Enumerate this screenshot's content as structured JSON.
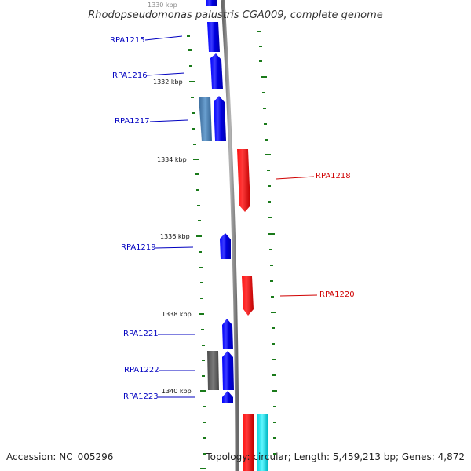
{
  "header": {
    "title": "Rhodopseudomonas palustris CGA009, complete genome"
  },
  "footer": {
    "accession": "Accession: NC_005296",
    "summary": "Topology: circular; Length: 5,459,213 bp; Genes: 4,872"
  },
  "colors": {
    "forward_gene": "#0000ff",
    "reverse_gene": "#ff0000",
    "rna_like": "#00e5ee",
    "pseudo_steel": "#4a7fb0",
    "pseudo_gray": "#666666",
    "backbone": "#8a8a8a",
    "tick": "#1a7a1a",
    "blue_label": "#0000c0",
    "red_label": "#d00000"
  },
  "ruler": {
    "labels": [
      "1330 kbp",
      "1332 kbp",
      "1334 kbp",
      "1336 kbp",
      "1338 kbp",
      "1340 kbp"
    ]
  },
  "genes": [
    {
      "id": "RPA1215",
      "strand": "forward"
    },
    {
      "id": "RPA1216",
      "strand": "forward"
    },
    {
      "id": "RPA1217",
      "strand": "forward"
    },
    {
      "id": "RPA1218",
      "strand": "reverse"
    },
    {
      "id": "RPA1219",
      "strand": "forward"
    },
    {
      "id": "RPA1220",
      "strand": "reverse"
    },
    {
      "id": "RPA1221",
      "strand": "forward"
    },
    {
      "id": "RPA1222",
      "strand": "forward"
    },
    {
      "id": "RPA1223",
      "strand": "forward"
    }
  ]
}
